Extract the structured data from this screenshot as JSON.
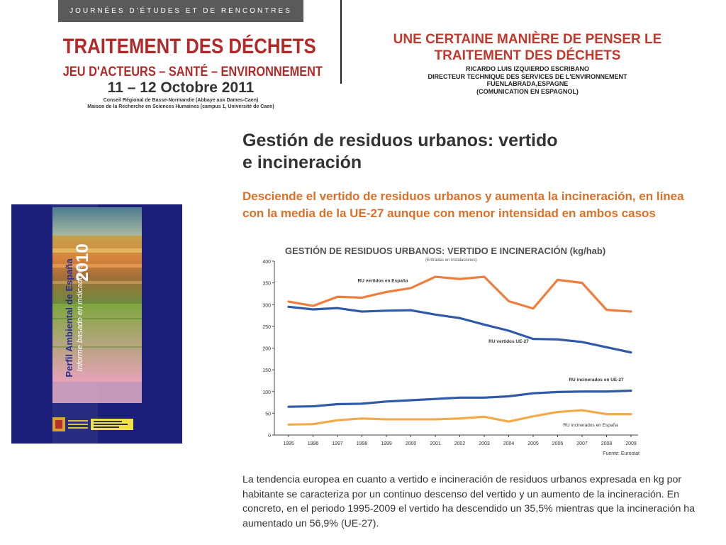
{
  "header": {
    "event_series": "JOURNÉES D'ÉTUDES ET DE RENCONTRES",
    "conference_title": "TRAITEMENT DES DÉCHETS",
    "conference_subtitle": "JEU D'ACTEURS – SANTÉ – ENVIRONNEMENT",
    "dates": "11 – 12 Octobre 2011",
    "venue_line1": "Conseil Régional de Basse-Normandie (Abbaye aux Dames-Caen)",
    "venue_line2": "Maison de la Recherche en Sciences Humaines (campus 1, Université de Caen)",
    "talk_title_line1": "UNE CERTAINE MANIÈRE DE PENSER LE",
    "talk_title_line2": "TRAITEMENT  DES DÉCHETS",
    "speaker": "RICARDO LUIS IZQUIERDO ESCRIBANO",
    "speaker_role": "DIRECTEUR TECHNIQUE DES SERVICES DE L'ENVIRONNEMENT",
    "speaker_city": "FUENLABRADA,ESPAGNE",
    "language_note": "(COMUNICATION EN ESPAGNOL)",
    "title_color": "#b12a2a"
  },
  "cover": {
    "year": "2010",
    "title": "Perfil Ambiental de España",
    "subtitle": "Informe basado en indicadores",
    "background_color": "#1b1f7a"
  },
  "slide": {
    "heading_line1": "Gestión de residuos urbanos: vertido",
    "heading_line2": "e incineración",
    "subheading": "Desciende el vertido de residuos urbanos y aumenta la incineración, en línea con la media de la UE-27 aunque con menor intensidad en ambos casos",
    "body": "La tendencia europea en cuanto a vertido e incineración de residuos urbanos expresada en kg por habitante se caracteriza por un continuo descenso del vertido y un aumento de la incineración. En concreto, en el periodo 1995-2009 el vertido ha descendido un 35,5% mientras que la incineración ha aumentado un 56,9% (UE-27).",
    "accent_color": "#d9702a"
  },
  "chart_data": {
    "type": "line",
    "title": "GESTIÓN DE RESIDUOS URBANOS: VERTIDO E INCINERACIÓN (kg/hab)",
    "note": "(Entradas en instalaciones)",
    "source_label": "Fuente:",
    "source": "Eurostat",
    "x": [
      "1995",
      "1996",
      "1997",
      "1998",
      "1999",
      "2000",
      "2001",
      "2002",
      "2003",
      "2004",
      "2005",
      "2006",
      "2007",
      "2008",
      "2009"
    ],
    "yticks": [
      "0",
      "50",
      "100",
      "150",
      "200",
      "250",
      "300",
      "350",
      "400"
    ],
    "ylim": [
      0,
      400
    ],
    "grid": false,
    "series": [
      {
        "name": "RU vertidos en España",
        "color": "#ef7d3c",
        "values": [
          307,
          297,
          318,
          316,
          329,
          338,
          364,
          359,
          364,
          308,
          291,
          357,
          350,
          288,
          284
        ]
      },
      {
        "name": "RU vertidos UE-27",
        "color": "#2e5aa8",
        "values": [
          295,
          289,
          292,
          284,
          286,
          287,
          277,
          269,
          254,
          240,
          221,
          220,
          214,
          202,
          190
        ]
      },
      {
        "name": "RU incinerados en UE-27",
        "color": "#2e5aa8",
        "values": [
          65,
          66,
          71,
          72,
          77,
          80,
          83,
          86,
          86,
          89,
          96,
          99,
          100,
          100,
          102
        ]
      },
      {
        "name": "RU incinerados en España",
        "color": "#f4a94a",
        "values": [
          24,
          25,
          34,
          38,
          36,
          36,
          36,
          38,
          42,
          31,
          43,
          53,
          57,
          48,
          48
        ]
      }
    ]
  }
}
